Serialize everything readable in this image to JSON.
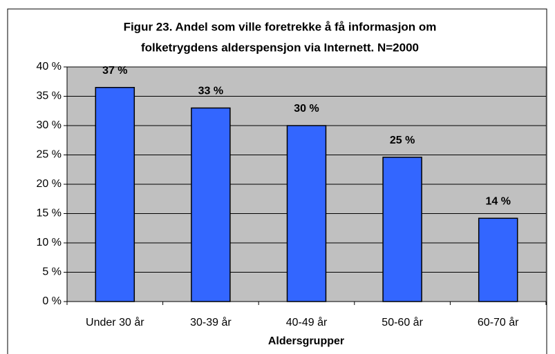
{
  "chart_data": {
    "type": "bar",
    "title": "Figur 23. Andel som ville foretrekke å få informasjon om folketrygdens alderspensjon via Internett. N=2000",
    "title_lines": [
      "Figur 23. Andel som ville foretrekke å få informasjon om",
      "folketrygdens alderspensjon via Internett. N=2000"
    ],
    "x_label": "Aldersgrupper",
    "categories": [
      "Under 30 år",
      "30-39 år",
      "40-49 år",
      "50-60 år",
      "60-70 år"
    ],
    "values": [
      36.5,
      33,
      30,
      24.6,
      14.2
    ],
    "value_labels": [
      "37 %",
      "33 %",
      "30 %",
      "25 %",
      "14 %"
    ],
    "color": "#3366ff",
    "ylim": [
      0,
      40
    ],
    "yticks": [
      {
        "value": 0,
        "label": "0 %"
      },
      {
        "value": 5,
        "label": "5 %"
      },
      {
        "value": 10,
        "label": "10 %"
      },
      {
        "value": 15,
        "label": "15 %"
      },
      {
        "value": 20,
        "label": "20 %"
      },
      {
        "value": 25,
        "label": "25 %"
      },
      {
        "value": 30,
        "label": "30 %"
      },
      {
        "value": 35,
        "label": "35 %"
      },
      {
        "value": 40,
        "label": "40 %"
      }
    ],
    "grid": true
  }
}
